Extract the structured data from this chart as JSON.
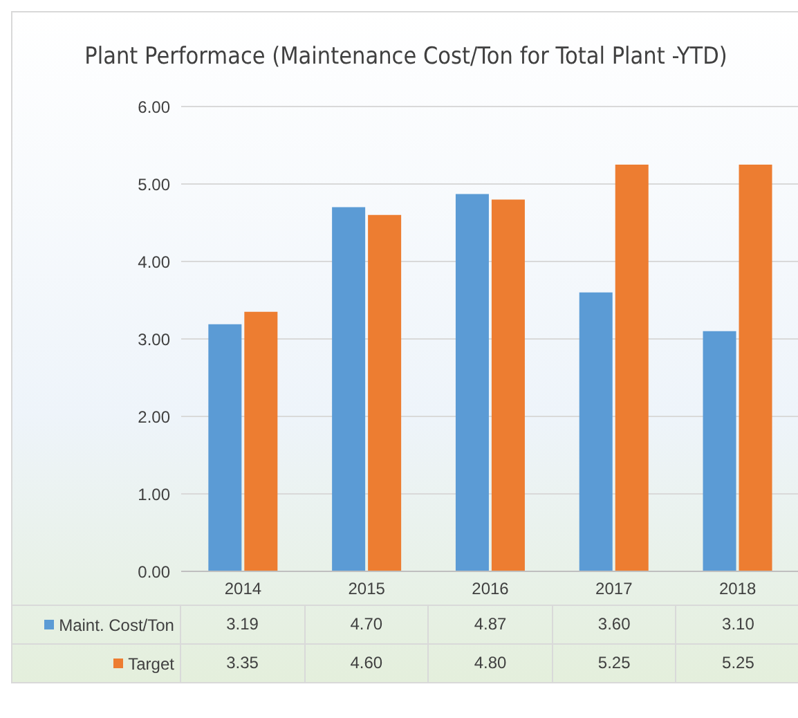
{
  "chart_data": {
    "type": "bar",
    "title": "Plant Performace (Maintenance Cost/Ton for Total Plant -YTD)",
    "categories": [
      "2014",
      "2015",
      "2016",
      "2017",
      "2018"
    ],
    "series": [
      {
        "name": "Maint. Cost/Ton",
        "color": "#5b9bd5",
        "values": [
          3.19,
          4.7,
          4.87,
          3.6,
          3.1
        ],
        "value_labels": [
          "3.19",
          "4.70",
          "4.87",
          "3.60",
          "3.10"
        ]
      },
      {
        "name": "Target",
        "color": "#ed7d31",
        "values": [
          3.35,
          4.6,
          4.8,
          5.25,
          5.25
        ],
        "value_labels": [
          "3.35",
          "4.60",
          "4.80",
          "5.25",
          "5.25"
        ]
      }
    ],
    "ylim": [
      0,
      6
    ],
    "yticks": [
      {
        "value": 0,
        "label": "0.00"
      },
      {
        "value": 1,
        "label": "1.00"
      },
      {
        "value": 2,
        "label": "2.00"
      },
      {
        "value": 3,
        "label": "3.00"
      },
      {
        "value": 4,
        "label": "4.00"
      },
      {
        "value": 5,
        "label": "5.00"
      },
      {
        "value": 6,
        "label": "6.00"
      }
    ],
    "grid": "y",
    "legend": "bottom"
  }
}
